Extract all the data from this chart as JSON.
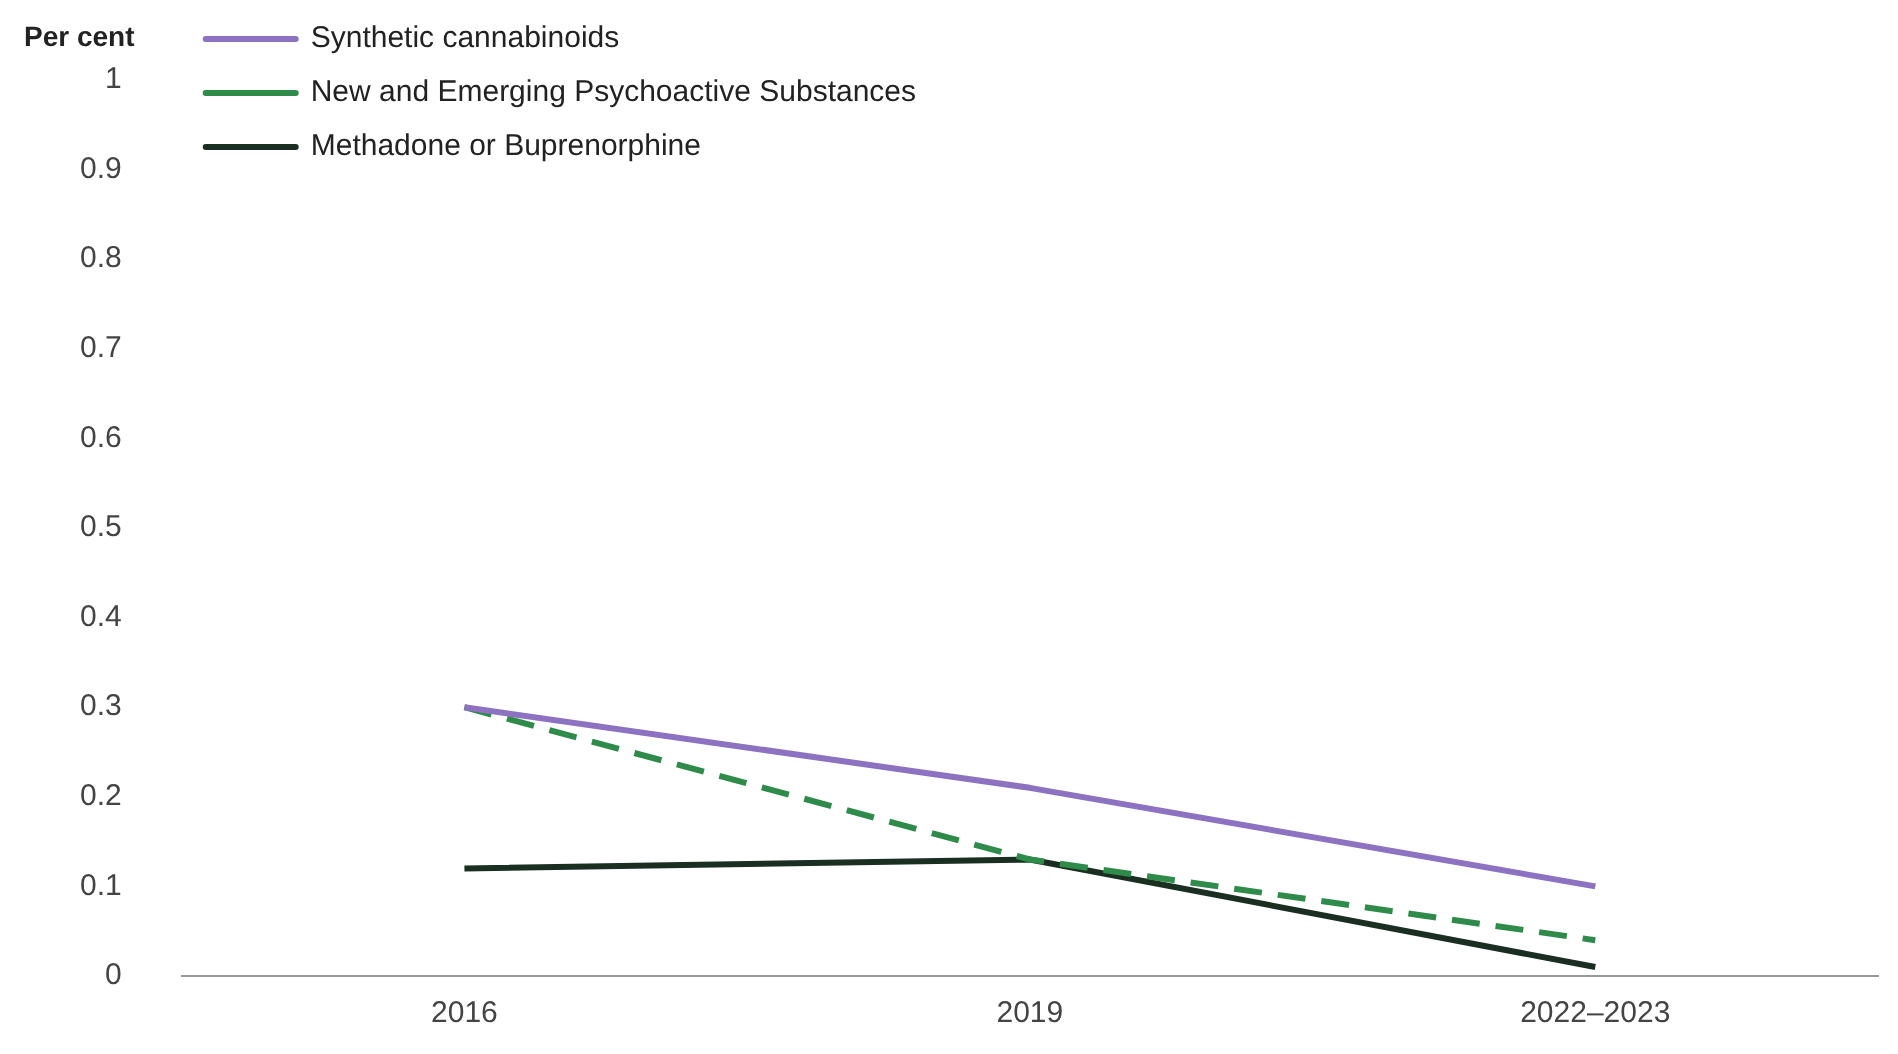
{
  "chart_data": {
    "type": "line",
    "ylabel": "Per cent",
    "categories": [
      "2016",
      "2019",
      "2022–2023"
    ],
    "series": [
      {
        "name": "Synthetic cannabinoids",
        "color": "#8c72c0",
        "values": [
          0.3,
          0.21,
          0.1
        ],
        "line_style": "solid"
      },
      {
        "name": "New and Emerging Psychoactive Substances",
        "color": "#2e8b4a",
        "values": [
          0.3,
          0.13,
          0.04
        ],
        "line_style": "dashed"
      },
      {
        "name": "Methadone or Buprenorphine",
        "color": "#1a2e22",
        "values": [
          0.12,
          0.13,
          0.01
        ],
        "line_style": "solid"
      }
    ],
    "ylim": [
      0,
      1
    ],
    "yticks": [
      0,
      0.1,
      0.2,
      0.3,
      0.4,
      0.5,
      0.6,
      0.7,
      0.8,
      0.9,
      1
    ],
    "grid": false,
    "legend": "top left",
    "marker": "none"
  }
}
